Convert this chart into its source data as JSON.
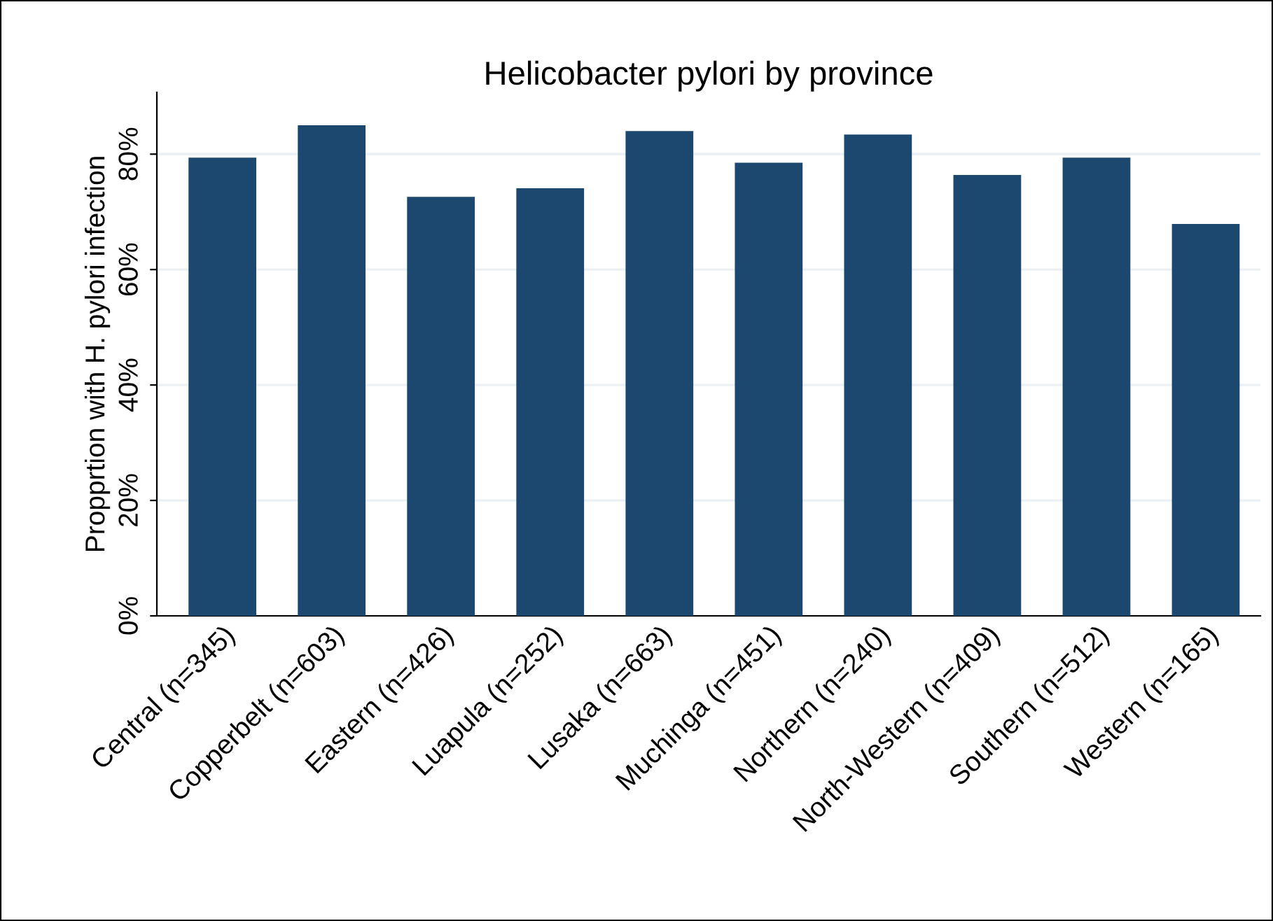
{
  "chart_data": {
    "type": "bar",
    "title": "Helicobacter pylori by province",
    "ylabel": "Propprtion with H. pylori infection",
    "categories": [
      "Central (n=345)",
      "Copperbelt (n=603)",
      "Eastern (n=426)",
      "Luapula (n=252)",
      "Lusaka (n=663)",
      "Muchinga (n=451)",
      "Northern (n=240)",
      "North-Western (n=409)",
      "Southern (n=512)",
      "Western (n=165)"
    ],
    "values": [
      79.4,
      85.0,
      72.6,
      74.1,
      84.0,
      78.5,
      83.4,
      76.4,
      79.4,
      67.9
    ],
    "color": "#1c4870",
    "ylim": [
      0,
      90.7
    ],
    "yticks": [
      {
        "value": 0,
        "label": "0%"
      },
      {
        "value": 20,
        "label": "20%"
      },
      {
        "value": 40,
        "label": "40%"
      },
      {
        "value": 60,
        "label": "60%"
      },
      {
        "value": 80,
        "label": "80%"
      }
    ],
    "grid": "y",
    "legend": false
  }
}
